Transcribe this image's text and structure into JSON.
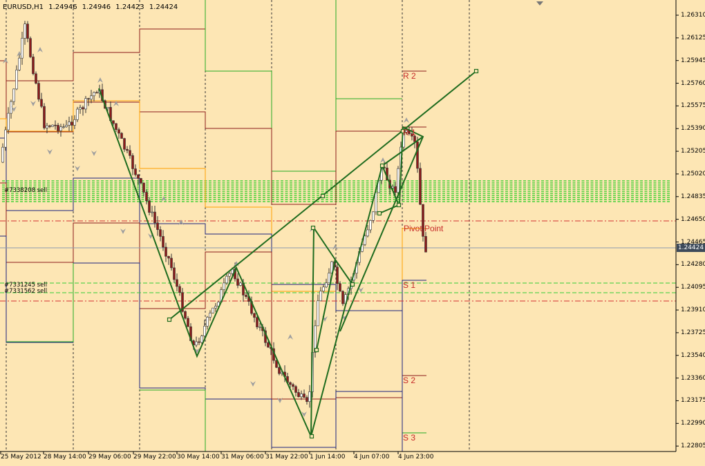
{
  "chart": {
    "symbol": "EURUSD,H1",
    "open": "1.24946",
    "high": "1.24946",
    "low": "1.24423",
    "close": "1.24424"
  },
  "price_axis": {
    "labels": [
      "1.26310",
      "1.26125",
      "1.25945",
      "1.25760",
      "1.25575",
      "1.25390",
      "1.25205",
      "1.25020",
      "1.24835",
      "1.24650",
      "1.24465",
      "1.24280",
      "1.24095",
      "1.23910",
      "1.23725",
      "1.23540",
      "1.23360",
      "1.23175",
      "1.22990",
      "1.22805"
    ],
    "current_price": "1.24424"
  },
  "time_axis": {
    "labels": [
      "25 May 2012",
      "28 May 14:00",
      "29 May 06:00",
      "29 May 22:00",
      "30 May 14:00",
      "31 May 06:00",
      "31 May 22:00",
      "1 Jun 14:00",
      "4 Jun 07:00",
      "4 Jun 23:00"
    ]
  },
  "orders": [
    {
      "label": "#7338208 sell",
      "price": 1.2488
    },
    {
      "label": "#7331245 sell",
      "price": 1.2411
    },
    {
      "label": "#7331562 sell",
      "price": 1.2406
    }
  ],
  "pivots": {
    "r2": "R 2",
    "r1": "R 1",
    "pivot": "Pivot Point",
    "s1": "S 1",
    "s2": "S 2",
    "s3": "S 3"
  },
  "colors": {
    "background": "#fde6b4",
    "candle_up": "#ffffff",
    "candle_down": "#8b1a1a",
    "zigzag": "#1e6b1e",
    "resistance": "#8b1a1a",
    "support": "#1a237e",
    "pivot": "#ffa000",
    "green_level": "#22aa22",
    "order_line": "#33cc33",
    "stop_line": "#d32f2f",
    "fractal": "#9e9e9e"
  }
}
